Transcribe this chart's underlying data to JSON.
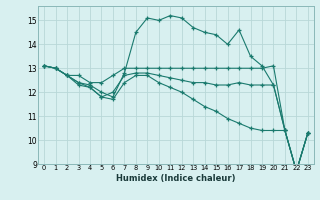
{
  "xlabel": "Humidex (Indice chaleur)",
  "ylabel": "",
  "xlim": [
    -0.5,
    23.5
  ],
  "ylim": [
    9,
    15.6
  ],
  "yticks": [
    9,
    10,
    11,
    12,
    13,
    14,
    15
  ],
  "xticks": [
    0,
    1,
    2,
    3,
    4,
    5,
    6,
    7,
    8,
    9,
    10,
    11,
    12,
    13,
    14,
    15,
    16,
    17,
    18,
    19,
    20,
    21,
    22,
    23
  ],
  "bg_color": "#d8f0f0",
  "line_color": "#1a7a6e",
  "grid_color": "#b8d8d8",
  "lines": [
    {
      "x": [
        0,
        1,
        2,
        3,
        4,
        5,
        6,
        7,
        8,
        9,
        10,
        11,
        12,
        13,
        14,
        15,
        16,
        17,
        18,
        19,
        20,
        21,
        22,
        23
      ],
      "y": [
        13.1,
        13.0,
        12.7,
        12.4,
        12.3,
        12.0,
        11.8,
        12.8,
        14.5,
        15.1,
        15.0,
        15.2,
        15.1,
        14.7,
        14.5,
        14.4,
        14.0,
        14.6,
        13.5,
        13.1,
        12.3,
        10.4,
        8.7,
        10.3
      ]
    },
    {
      "x": [
        0,
        1,
        2,
        3,
        4,
        5,
        6,
        7,
        8,
        9,
        10,
        11,
        12,
        13,
        14,
        15,
        16,
        17,
        18,
        19,
        20,
        21,
        22,
        23
      ],
      "y": [
        13.1,
        13.0,
        12.7,
        12.7,
        12.4,
        12.4,
        12.7,
        13.0,
        13.0,
        13.0,
        13.0,
        13.0,
        13.0,
        13.0,
        13.0,
        13.0,
        13.0,
        13.0,
        13.0,
        13.0,
        13.1,
        10.4,
        8.7,
        10.3
      ]
    },
    {
      "x": [
        0,
        1,
        2,
        3,
        4,
        5,
        6,
        7,
        8,
        9,
        10,
        11,
        12,
        13,
        14,
        15,
        16,
        17,
        18,
        19,
        20,
        21,
        22,
        23
      ],
      "y": [
        13.1,
        13.0,
        12.7,
        12.4,
        12.2,
        11.8,
        12.0,
        12.7,
        12.8,
        12.8,
        12.7,
        12.6,
        12.5,
        12.4,
        12.4,
        12.3,
        12.3,
        12.4,
        12.3,
        12.3,
        12.3,
        10.4,
        8.7,
        10.3
      ]
    },
    {
      "x": [
        0,
        1,
        2,
        3,
        4,
        5,
        6,
        7,
        8,
        9,
        10,
        11,
        12,
        13,
        14,
        15,
        16,
        17,
        18,
        19,
        20,
        21,
        22,
        23
      ],
      "y": [
        13.1,
        13.0,
        12.7,
        12.3,
        12.2,
        11.8,
        11.7,
        12.4,
        12.7,
        12.7,
        12.4,
        12.2,
        12.0,
        11.7,
        11.4,
        11.2,
        10.9,
        10.7,
        10.5,
        10.4,
        10.4,
        10.4,
        8.7,
        10.3
      ]
    }
  ]
}
